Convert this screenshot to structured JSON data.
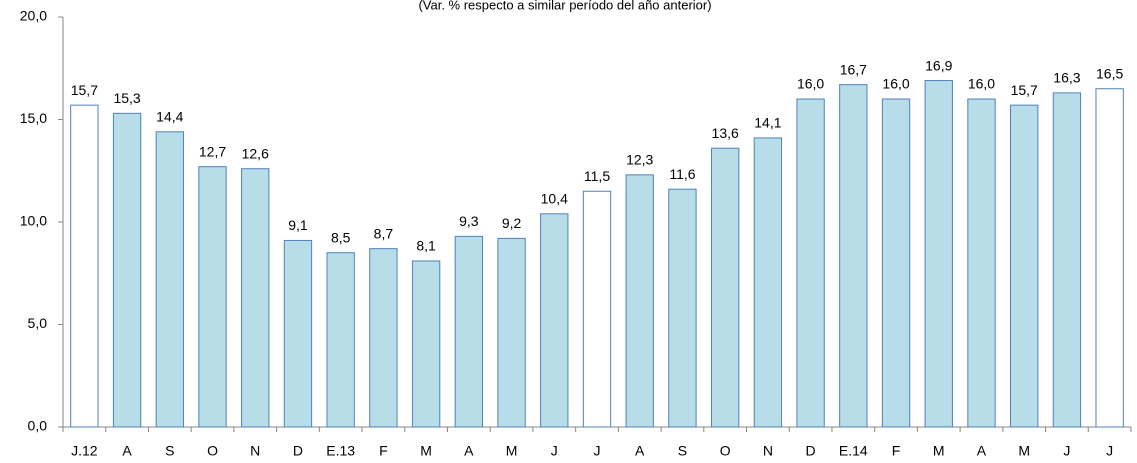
{
  "chart_data": {
    "type": "bar",
    "subtitle": "(Var. % respecto a similar período del año anterior)",
    "categories": [
      "J.12",
      "A",
      "S",
      "O",
      "N",
      "D",
      "E.13",
      "F",
      "M",
      "A",
      "M",
      "J",
      "J",
      "A",
      "S",
      "O",
      "N",
      "D",
      "E.14",
      "F",
      "M",
      "A",
      "M",
      "J",
      "J"
    ],
    "values": [
      15.7,
      15.3,
      14.4,
      12.7,
      12.6,
      9.1,
      8.5,
      8.7,
      8.1,
      9.3,
      9.2,
      10.4,
      11.5,
      12.3,
      11.6,
      13.6,
      14.1,
      16.0,
      16.7,
      16.0,
      16.9,
      16.0,
      15.7,
      16.3,
      16.5
    ],
    "value_labels": [
      "15,7",
      "15,3",
      "14,4",
      "12,7",
      "12,6",
      "9,1",
      "8,5",
      "8,7",
      "8,1",
      "9,3",
      "9,2",
      "10,4",
      "11,5",
      "12,3",
      "11,6",
      "13,6",
      "14,1",
      "16,0",
      "16,7",
      "16,0",
      "16,9",
      "16,0",
      "15,7",
      "16,3",
      "16,5"
    ],
    "colors": [
      "#ffffff",
      "#b7dde8",
      "#b7dde8",
      "#b7dde8",
      "#b7dde8",
      "#b7dde8",
      "#b7dde8",
      "#b7dde8",
      "#b7dde8",
      "#b7dde8",
      "#b7dde8",
      "#b7dde8",
      "#ffffff",
      "#b7dde8",
      "#b7dde8",
      "#b7dde8",
      "#b7dde8",
      "#b7dde8",
      "#b7dde8",
      "#b7dde8",
      "#b7dde8",
      "#b7dde8",
      "#b7dde8",
      "#b7dde8",
      "#ffffff"
    ],
    "edge_color": "#4f81bd",
    "ylim": [
      0,
      20
    ],
    "yticks": [
      {
        "value": 0,
        "label": "0,0"
      },
      {
        "value": 5,
        "label": "5,0"
      },
      {
        "value": 10,
        "label": "10,0"
      },
      {
        "value": 15,
        "label": "15,0"
      },
      {
        "value": 20,
        "label": "20,0"
      }
    ],
    "grid": false
  }
}
